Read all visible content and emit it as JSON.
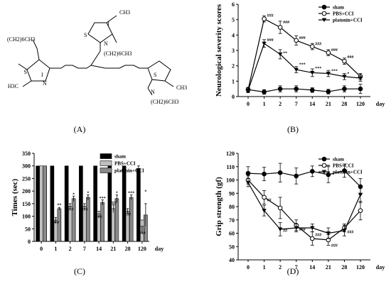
{
  "panels": {
    "A": "(A)",
    "B": "(B)",
    "C": "(C)",
    "D": "(D)"
  },
  "chem": {
    "atoms": [
      "S",
      "N",
      "I",
      "S",
      "N",
      "I",
      "S",
      "N",
      "H3C",
      "CH3",
      "CH3",
      "(CH2)6CH3",
      "(CH2)6CH3",
      "(CH2)6CH3"
    ]
  },
  "chart_data": [
    {
      "id": "B",
      "type": "line",
      "ylabel": "Neurological severity scores",
      "xlabel_unit": "day",
      "categories": [
        "0",
        "1",
        "2",
        "7",
        "14",
        "21",
        "28",
        "120"
      ],
      "ylim": [
        0,
        6
      ],
      "yticks": [
        "0",
        "1",
        "2",
        "3",
        "4",
        "5",
        "6"
      ],
      "legend_position": "top-right",
      "series": [
        {
          "name": "sham",
          "marker": "circle-filled",
          "values": [
            0.45,
            0.3,
            0.5,
            0.5,
            0.42,
            0.32,
            0.5,
            0.5
          ],
          "errors": [
            0.15,
            0.15,
            0.2,
            0.2,
            0.15,
            0.15,
            0.2,
            0.3
          ]
        },
        {
          "name": "PBS+CCI",
          "marker": "circle-open",
          "values": [
            0.45,
            5.05,
            4.5,
            3.65,
            3.25,
            2.85,
            2.3,
            1.3
          ],
          "errors": [
            0.15,
            0.2,
            0.4,
            0.3,
            0.2,
            0.2,
            0.2,
            0.2
          ]
        },
        {
          "name": "platonin+CCI",
          "marker": "triangle-down-filled",
          "values": [
            0.4,
            3.45,
            2.75,
            1.75,
            1.55,
            1.5,
            1.3,
            1.2
          ],
          "errors": [
            0.15,
            0.25,
            0.3,
            0.2,
            0.25,
            0.2,
            0.2,
            0.2
          ]
        }
      ],
      "annotations": [
        {
          "text": "###",
          "x": "1",
          "y": 5.2
        },
        {
          "text": "###",
          "x": "2",
          "y": 4.75
        },
        {
          "text": "###",
          "x": "7",
          "y": 3.75
        },
        {
          "text": "###",
          "x": "14",
          "y": 3.35
        },
        {
          "text": "###",
          "x": "21",
          "y": 2.95
        },
        {
          "text": "###",
          "x": "28",
          "y": 2.5
        },
        {
          "text": "###",
          "x": "1",
          "y": 3.6
        },
        {
          "text": "**",
          "x": "2",
          "y": 2.75
        },
        {
          "text": "***",
          "x": "7",
          "y": 2.0
        },
        {
          "text": "***",
          "x": "14",
          "y": 1.75
        },
        {
          "text": "***",
          "x": "21",
          "y": 1.6
        },
        {
          "text": "*",
          "x": "28",
          "y": 1.4
        }
      ]
    },
    {
      "id": "C",
      "type": "bar",
      "ylabel": "Times (sec)",
      "xlabel_unit": "day",
      "categories": [
        "0",
        "1",
        "2",
        "7",
        "14",
        "21",
        "28",
        "120"
      ],
      "ylim": [
        0,
        350
      ],
      "yticks": [
        "0",
        "50",
        "100",
        "150",
        "200",
        "250",
        "300",
        "350"
      ],
      "legend_position": "top-right",
      "series": [
        {
          "name": "sham",
          "style": "solid-black",
          "values": [
            300,
            300,
            300,
            300,
            300,
            300,
            300,
            290
          ],
          "errors": [
            0,
            0,
            0,
            0,
            0,
            0,
            0,
            10
          ]
        },
        {
          "name": "PBS+CCI",
          "style": "white-striped",
          "values": [
            300,
            85,
            140,
            140,
            110,
            130,
            120,
            60
          ],
          "errors": [
            0,
            10,
            10,
            10,
            10,
            15,
            10,
            25
          ]
        },
        {
          "name": "platonin+CCI",
          "style": "grey-striped",
          "values": [
            300,
            130,
            170,
            175,
            155,
            170,
            175,
            105
          ],
          "errors": [
            0,
            5,
            10,
            10,
            10,
            15,
            10,
            45
          ]
        }
      ],
      "annotations": [
        {
          "text": "**",
          "category": "1",
          "series": 2,
          "y": 140
        },
        {
          "text": "*",
          "category": "2",
          "series": 2,
          "y": 182
        },
        {
          "text": "*",
          "category": "7",
          "series": 2,
          "y": 188
        },
        {
          "text": "***",
          "category": "14",
          "series": 2,
          "y": 167
        },
        {
          "text": "*",
          "category": "21",
          "series": 2,
          "y": 188
        },
        {
          "text": "***",
          "category": "28",
          "series": 2,
          "y": 187
        },
        {
          "text": "*",
          "category": "120",
          "series": 2,
          "y": 193
        },
        {
          "text": "###",
          "category": "1",
          "series": 1,
          "y": 70
        },
        {
          "text": "###",
          "category": "2",
          "series": 1,
          "y": 123
        },
        {
          "text": "###",
          "category": "7",
          "series": 1,
          "y": 123
        },
        {
          "text": "###",
          "category": "14",
          "series": 1,
          "y": 93
        },
        {
          "text": "###",
          "category": "21",
          "series": 1,
          "y": 148
        },
        {
          "text": "###",
          "category": "28",
          "series": 1,
          "y": 103
        },
        {
          "text": "###",
          "category": "120",
          "series": 1,
          "y": 28
        }
      ]
    },
    {
      "id": "D",
      "type": "line",
      "ylabel": "Grip strength (gf)",
      "xlabel_unit": "day",
      "categories": [
        "0",
        "1",
        "2",
        "7",
        "14",
        "21",
        "28",
        "120"
      ],
      "ylim": [
        40,
        120
      ],
      "yticks": [
        "40",
        "50",
        "60",
        "70",
        "80",
        "90",
        "100",
        "110",
        "120"
      ],
      "legend_position": "top-right",
      "series": [
        {
          "name": "sham",
          "marker": "circle-filled",
          "values": [
            105,
            104.5,
            105.5,
            103,
            106.5,
            104,
            107,
            95
          ],
          "errors": [
            5,
            5,
            7,
            6,
            4,
            6,
            5,
            6
          ]
        },
        {
          "name": "PBS+CCI",
          "marker": "circle-open",
          "values": [
            100,
            87,
            79,
            66,
            56,
            55,
            64,
            77
          ],
          "errors": [
            3,
            5,
            8,
            4,
            5,
            4,
            3,
            7
          ]
        },
        {
          "name": "platonin+CCI",
          "marker": "triangle-down-filled",
          "values": [
            98,
            77,
            63,
            64,
            64,
            60,
            62,
            89
          ],
          "errors": [
            3,
            4,
            5,
            3,
            3,
            4,
            4,
            6
          ]
        }
      ],
      "annotations": [
        {
          "text": "##",
          "x": "1",
          "y": 84
        },
        {
          "text": "##",
          "x": "2",
          "y": 61
        },
        {
          "text": "###",
          "x": "7",
          "y": 62
        },
        {
          "text": "###",
          "x": "14",
          "y": 58
        },
        {
          "text": "###",
          "x": "21",
          "y": 50
        },
        {
          "text": "###",
          "x": "28",
          "y": 60
        }
      ]
    }
  ]
}
